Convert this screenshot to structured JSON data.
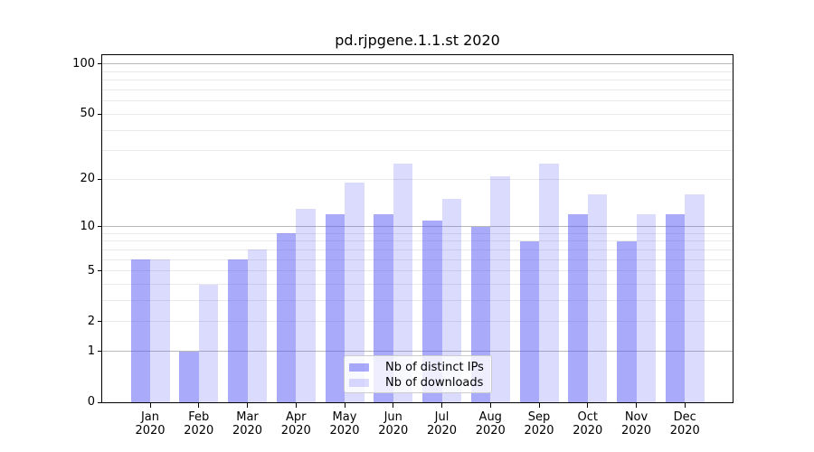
{
  "title": "pd.rjpgene.1.1.st 2020",
  "chart_data": {
    "type": "bar",
    "title": "pd.rjpgene.1.1.st 2020",
    "categories": [
      "Jan 2020",
      "Feb 2020",
      "Mar 2020",
      "Apr 2020",
      "May 2020",
      "Jun 2020",
      "Jul 2020",
      "Aug 2020",
      "Sep 2020",
      "Oct 2020",
      "Nov 2020",
      "Dec 2020"
    ],
    "series": [
      {
        "name": "Nb of distinct IPs",
        "color": "rgba(85,85,245,0.5)",
        "values": [
          6,
          1,
          6,
          9,
          12,
          12,
          11,
          10,
          8,
          12,
          8,
          12
        ]
      },
      {
        "name": "Nb of downloads",
        "color": "rgba(85,85,245,0.21)",
        "values": [
          6,
          4,
          7,
          13,
          19,
          25,
          15,
          21,
          25,
          16,
          12,
          16
        ]
      }
    ],
    "xlabel": "",
    "ylabel": "",
    "yscale": "log1p",
    "ylim": [
      0,
      113
    ],
    "y_ticks": [
      0,
      1,
      2,
      5,
      10,
      20,
      50,
      100
    ],
    "y_major_gridlines": [
      1,
      10,
      100
    ],
    "y_minor_gridlines": [
      2,
      3,
      4,
      5,
      6,
      7,
      8,
      9,
      20,
      30,
      40,
      50,
      60,
      70,
      80,
      90
    ],
    "grid": true,
    "legend_position": "lower center"
  },
  "colors": {
    "ips_bar": "rgba(85,85,245,0.5)",
    "downloads_bar": "rgba(85,85,245,0.21)",
    "major_grid": "#b9b9b9",
    "minor_grid": "#e9e9e9",
    "spine": "#000000",
    "text": "#000000",
    "legend_border": "#cccccc",
    "legend_background": "rgba(255,255,255,0.8)"
  }
}
